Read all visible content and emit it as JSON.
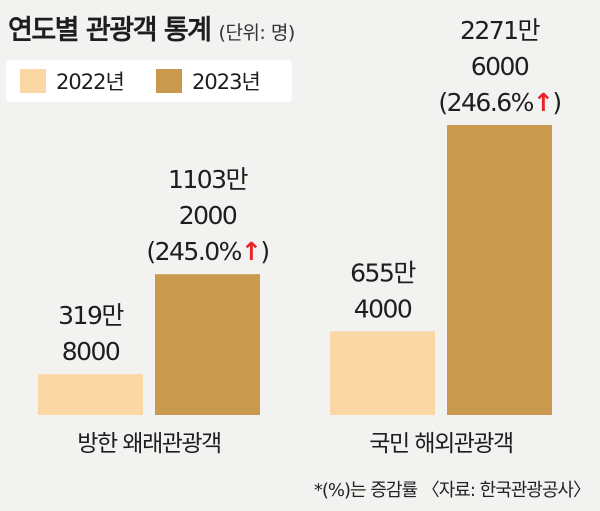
{
  "title": "연도별 관광객 통계",
  "unit": "(단위: 명)",
  "colors": {
    "2022": "#fad7a4",
    "2023": "#c99a4e",
    "arrow": "#e8242a"
  },
  "legend": [
    {
      "label": "2022년",
      "color": "#fad7a4"
    },
    {
      "label": "2023년",
      "color": "#c99a4e"
    }
  ],
  "source_note": "*(%)는 증감률 〈자료: 한국관광공사〉",
  "chart_data": {
    "type": "bar",
    "title": "연도별 관광객 통계",
    "unit": "(단위: 명)",
    "categories": [
      "방한 왜래관광객",
      "국민 해외관광객"
    ],
    "series": [
      {
        "name": "2022년",
        "values": [
          3198000,
          6554000
        ]
      },
      {
        "name": "2023년",
        "values": [
          11032000,
          22716000
        ]
      }
    ],
    "labels": [
      [
        "319만",
        "8000"
      ],
      [
        "655만",
        "4000"
      ],
      [
        "1103만",
        "2000"
      ],
      [
        "2271만",
        "6000"
      ]
    ],
    "growth_labels": [
      "(245.0%",
      "(246.6%"
    ],
    "growth_closing": ")",
    "legend": "top-left",
    "grid": false
  }
}
